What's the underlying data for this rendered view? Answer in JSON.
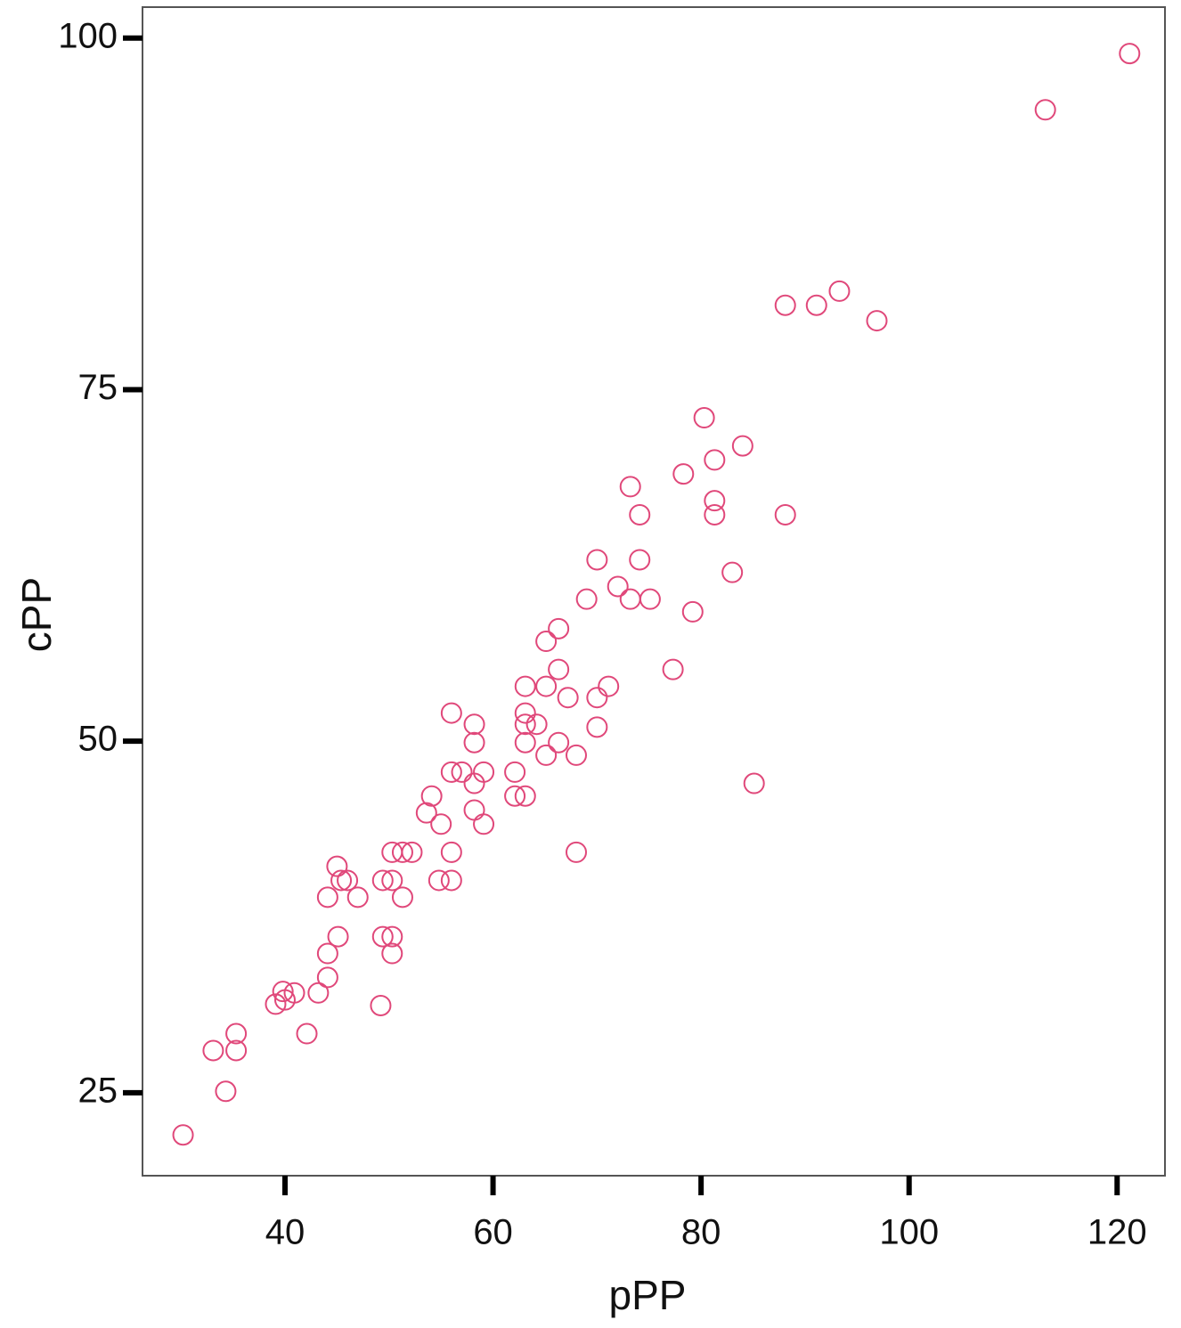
{
  "chart_data": {
    "type": "scatter",
    "x_label": "pPP",
    "y_label": "cPP",
    "color": "#e0487a",
    "xlim": [
      26.3,
      124.6
    ],
    "ylim": [
      19.1,
      102.2
    ],
    "xticks": [
      40,
      60,
      80,
      100,
      120
    ],
    "yticks": [
      25,
      50,
      75,
      100
    ],
    "grid": false,
    "x": [
      30.2,
      33.1,
      34.3,
      35.3,
      35.3,
      39.1,
      40.0,
      39.8,
      40.9,
      42.1,
      43.2,
      44.1,
      44.1,
      45.1,
      44.1,
      45.0,
      45.4,
      46.0,
      47.0,
      49.2,
      49.4,
      50.3,
      50.3,
      49.4,
      50.3,
      51.3,
      50.3,
      51.3,
      52.2,
      53.6,
      54.1,
      55.0,
      54.8,
      56.0,
      56.0,
      56.0,
      57.0,
      56.0,
      58.2,
      58.2,
      58.2,
      58.2,
      59.1,
      59.1,
      62.1,
      62.1,
      63.1,
      63.1,
      63.1,
      63.1,
      63.1,
      64.2,
      65.1,
      65.1,
      65.1,
      66.3,
      66.3,
      66.3,
      67.2,
      68.0,
      68.0,
      69.0,
      70.0,
      70.0,
      70.0,
      71.1,
      72.0,
      73.2,
      73.2,
      74.1,
      74.1,
      75.1,
      77.3,
      78.3,
      79.2,
      80.3,
      81.3,
      81.3,
      81.3,
      83.0,
      84.0,
      85.1,
      88.1,
      88.1,
      91.1,
      93.3,
      96.9,
      113.1,
      121.2
    ],
    "y": [
      22.0,
      28.0,
      25.1,
      29.2,
      28.0,
      31.3,
      31.6,
      32.2,
      32.1,
      29.2,
      32.1,
      33.2,
      34.9,
      36.1,
      38.9,
      41.1,
      40.1,
      40.1,
      38.9,
      31.2,
      36.1,
      36.1,
      34.9,
      40.1,
      40.1,
      38.9,
      42.1,
      42.1,
      42.1,
      44.9,
      46.1,
      44.1,
      40.1,
      40.1,
      42.1,
      47.8,
      47.8,
      52.0,
      51.2,
      49.9,
      47.0,
      45.1,
      44.1,
      47.8,
      47.8,
      46.1,
      46.1,
      53.9,
      52.0,
      51.2,
      49.9,
      51.2,
      57.1,
      53.9,
      49.0,
      58.0,
      55.1,
      49.9,
      53.1,
      49.0,
      42.1,
      60.1,
      62.9,
      53.1,
      51.0,
      53.9,
      61.0,
      60.1,
      68.1,
      66.1,
      62.9,
      60.1,
      55.1,
      69.0,
      59.2,
      73.0,
      70.0,
      67.1,
      66.1,
      62.0,
      71.0,
      47.0,
      66.1,
      81.0,
      81.0,
      82.0,
      79.9,
      94.9,
      98.9
    ]
  }
}
